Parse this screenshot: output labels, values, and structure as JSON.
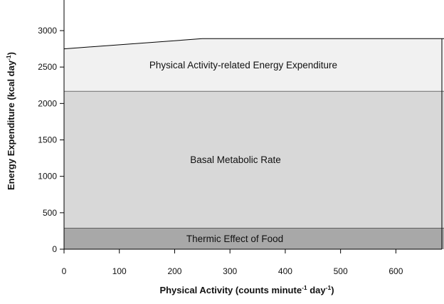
{
  "chart_data": {
    "type": "area",
    "stacked": true,
    "xlabel": "Physical Activity (counts minute-1 day-1)",
    "ylabel": "Energy Expenditure (kcal day-1)",
    "xlim": [
      0,
      690
    ],
    "ylim": [
      0,
      3450
    ],
    "x_ticks": [
      "0",
      "100",
      "200",
      "300",
      "400",
      "500",
      "600"
    ],
    "y_ticks": [
      "0",
      "500",
      "1000",
      "1500",
      "2000",
      "2500",
      "3000"
    ],
    "x": [
      0,
      250,
      690
    ],
    "series": [
      {
        "name": "Thermic Effect of Food",
        "values": [
          290,
          290,
          290
        ],
        "color": "#a8a8a8"
      },
      {
        "name": "Basal Metabolic Rate",
        "values": [
          1880,
          1880,
          1880
        ],
        "color": "#d8d8d8"
      },
      {
        "name": "Physical Activity-related Energy Expenditure",
        "values": [
          580,
          720,
          720
        ],
        "color": "#f1f1f1"
      }
    ],
    "grid": false,
    "legend": "none"
  }
}
